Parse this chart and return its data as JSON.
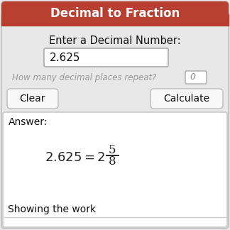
{
  "title": "Decimal to Fraction",
  "title_bg": "#b94030",
  "title_color": "#ffffff",
  "bg_color": "#e8e8e8",
  "answer_bg": "#ffffff",
  "label_decimal": "Enter a Decimal Number:",
  "input_value": "2.625",
  "repeat_label": "How many decimal places repeat?",
  "repeat_value": "0",
  "btn_clear": "Clear",
  "btn_calc": "Calculate",
  "answer_label": "Answer:",
  "numerator": "5",
  "denominator": "8",
  "showing": "Showing the work",
  "border_color": "#c0c0c0",
  "input_border": "#aaaaaa",
  "repeat_label_color": "#999999",
  "outer_bg": "#f0f0f0"
}
